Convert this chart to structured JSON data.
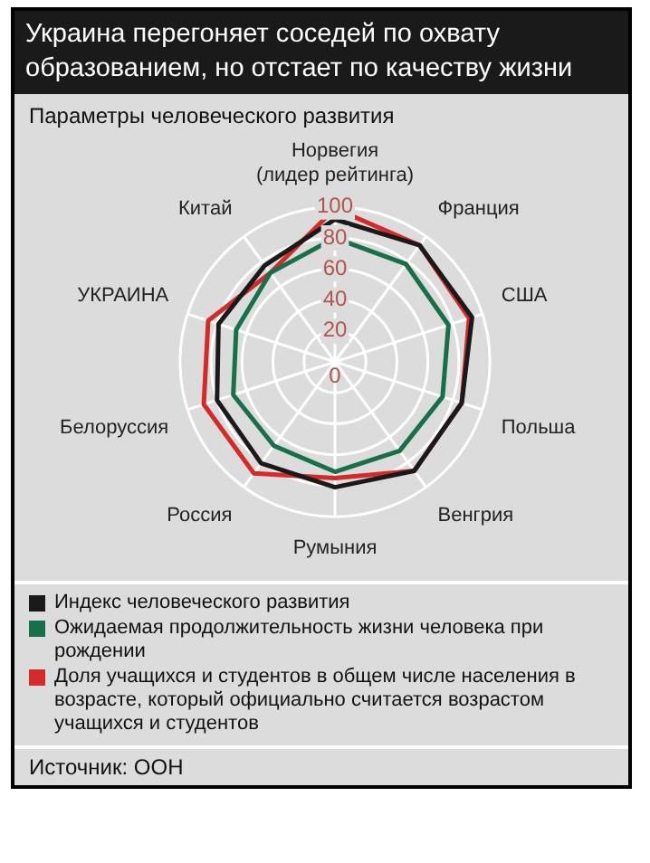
{
  "chart_data": {
    "type": "radar",
    "title": "Украина перегоняет соседей по охвату образованием, но отстает по качеству жизни",
    "subtitle": "Параметры человеческого развития",
    "categories": [
      "Норвегия (лидер рейтинга)",
      "Франция",
      "США",
      "Польша",
      "Венгрия",
      "Румыния",
      "Россия",
      "Белоруссия",
      "УКРАИНА",
      "Китай"
    ],
    "series": [
      {
        "name": "Индекс человеческого развития",
        "color": "#1a1a1a",
        "values": [
          92,
          93,
          93,
          86,
          87,
          81,
          81,
          80,
          79,
          77
        ]
      },
      {
        "name": "Ожидаемая продолжительность жизни человека при рождении",
        "color": "#17704a",
        "values": [
          80,
          78,
          77,
          73,
          71,
          71,
          67,
          69,
          67,
          71
        ]
      },
      {
        "name": "Доля учащихся и студентов в общем числе населения в возрасте, который официально считается возрастом учащихся и студентов",
        "color": "#d42a2a",
        "values": [
          99,
          93,
          91,
          86,
          87,
          75,
          89,
          89,
          86,
          71
        ]
      }
    ],
    "ylim": [
      0,
      100
    ],
    "yticks": [
      0,
      20,
      40,
      60,
      80,
      100
    ],
    "grid": true,
    "legend": "bottom",
    "marker": "none",
    "line_style": "solid",
    "annotations": [
      "Источник: ООН"
    ]
  }
}
